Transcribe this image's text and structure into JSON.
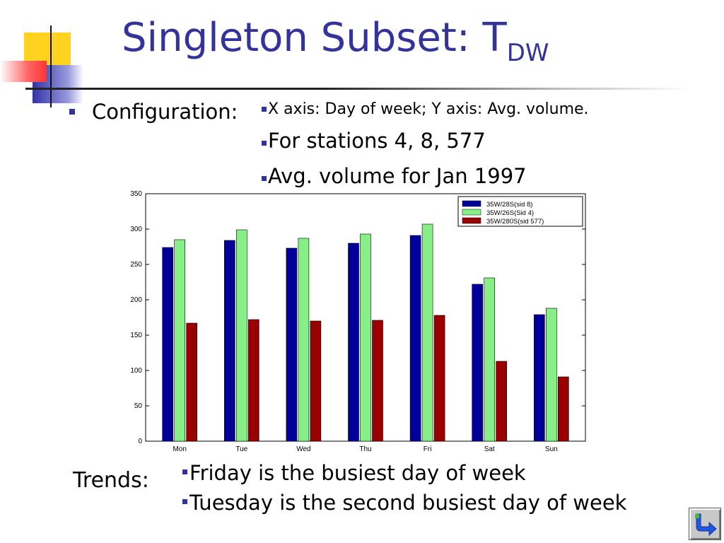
{
  "slide": {
    "title_main": "Singleton Subset: T",
    "title_sub": "DW",
    "config_label": "Configuration:",
    "config_items": [
      "X axis: Day of week; Y axis: Avg. volume.",
      "For stations 4, 8, 577",
      "Avg. volume for Jan 1997"
    ],
    "trends_label": "Trends:",
    "trend_items": [
      "Friday is the busiest day of week",
      "Tuesday is the second busiest day of week"
    ],
    "nav_icon": "return-arrow-icon"
  },
  "colors": {
    "title": "#333399",
    "bullet": "#333399",
    "series_1": "#000099",
    "series_2": "#88ee88",
    "series_3": "#990000"
  },
  "chart_data": {
    "type": "bar",
    "categories": [
      "Mon",
      "Tue",
      "Wed",
      "Thu",
      "Fri",
      "Sat",
      "Sun"
    ],
    "series": [
      {
        "name": "35W/28S(sid 8)",
        "values": [
          274,
          284,
          273,
          280,
          291,
          222,
          179
        ]
      },
      {
        "name": "35W/26S(Sid 4)",
        "values": [
          285,
          299,
          287,
          293,
          307,
          231,
          188
        ]
      },
      {
        "name": "35W/280S(sid 577)",
        "values": [
          167,
          172,
          170,
          171,
          178,
          113,
          91
        ]
      }
    ],
    "title": "",
    "xlabel": "",
    "ylabel": "",
    "ylim": [
      0,
      350
    ],
    "yticks": [
      0,
      50,
      100,
      150,
      200,
      250,
      300,
      350
    ],
    "grid": false,
    "legend": "top-right"
  }
}
